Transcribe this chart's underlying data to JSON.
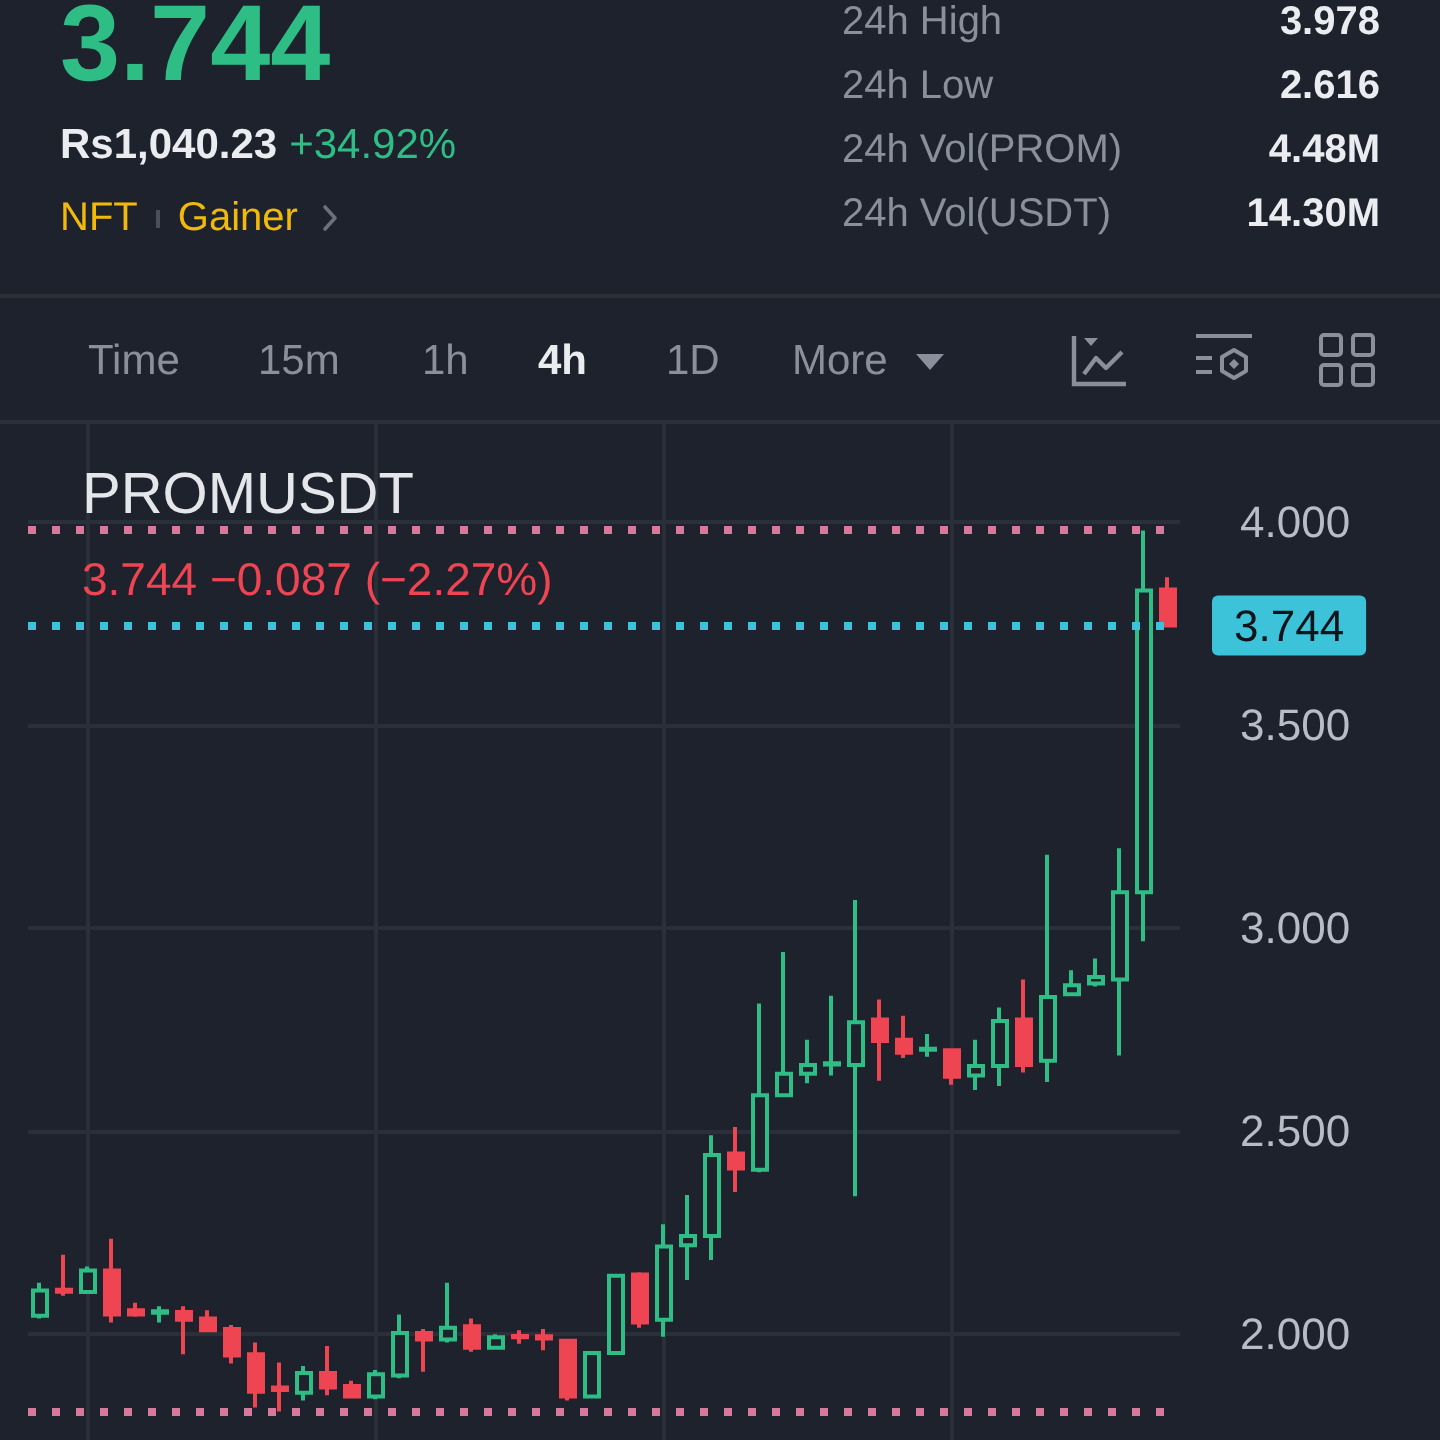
{
  "chart_data": {
    "type": "candlestick",
    "title": "PROMUSDT",
    "subtitle": "3.744 −0.087 (−2.27%)",
    "categories": [
      null,
      null,
      null,
      null,
      null,
      null,
      null,
      null,
      null,
      null,
      null,
      null,
      null,
      null,
      null,
      null,
      null,
      null,
      null,
      null,
      null,
      null,
      null,
      null,
      null,
      null,
      null,
      null,
      null,
      null,
      null,
      null,
      null,
      null,
      null,
      null,
      null,
      null,
      null,
      null,
      null,
      null,
      null,
      null,
      null,
      null,
      null,
      null
    ],
    "ohlc": [
      [
        2.046,
        2.127,
        2.039,
        2.108
      ],
      [
        2.11,
        2.196,
        2.095,
        2.105
      ],
      [
        2.104,
        2.167,
        2.101,
        2.157
      ],
      [
        2.157,
        2.235,
        2.029,
        2.049
      ],
      [
        2.059,
        2.078,
        2.043,
        2.049
      ],
      [
        2.053,
        2.069,
        2.029,
        2.057
      ],
      [
        2.055,
        2.069,
        1.951,
        2.036
      ],
      [
        2.039,
        2.059,
        2.01,
        2.01
      ],
      [
        2.013,
        2.023,
        1.928,
        1.948
      ],
      [
        1.951,
        1.98,
        1.82,
        1.859
      ],
      [
        1.869,
        1.931,
        1.81,
        1.863
      ],
      [
        1.856,
        1.922,
        1.837,
        1.905
      ],
      [
        1.905,
        1.971,
        1.85,
        1.869
      ],
      [
        1.873,
        1.886,
        1.847,
        1.847
      ],
      [
        1.847,
        1.912,
        1.84,
        1.902
      ],
      [
        1.899,
        2.049,
        1.892,
        2.003
      ],
      [
        2.003,
        2.013,
        1.908,
        1.987
      ],
      [
        1.987,
        2.127,
        1.98,
        2.016
      ],
      [
        2.02,
        2.039,
        1.957,
        1.967
      ],
      [
        1.967,
        2.0,
        1.964,
        1.993
      ],
      [
        1.996,
        2.01,
        1.977,
        1.993
      ],
      [
        1.995,
        2.013,
        1.961,
        1.99
      ],
      [
        1.984,
        1.987,
        1.837,
        1.847
      ],
      [
        1.847,
        1.958,
        1.845,
        1.954
      ],
      [
        1.954,
        2.146,
        1.952,
        2.144
      ],
      [
        2.147,
        2.153,
        2.016,
        2.029
      ],
      [
        2.036,
        2.271,
        1.994,
        2.216
      ],
      [
        2.219,
        2.343,
        2.134,
        2.242
      ],
      [
        2.242,
        2.49,
        2.183,
        2.441
      ],
      [
        2.445,
        2.51,
        2.35,
        2.408
      ],
      [
        2.405,
        2.814,
        2.399,
        2.588
      ],
      [
        2.588,
        2.941,
        2.585,
        2.641
      ],
      [
        2.641,
        2.725,
        2.618,
        2.663
      ],
      [
        2.664,
        2.833,
        2.637,
        2.667
      ],
      [
        2.663,
        3.069,
        2.34,
        2.768
      ],
      [
        2.775,
        2.824,
        2.624,
        2.722
      ],
      [
        2.725,
        2.784,
        2.68,
        2.693
      ],
      [
        2.7,
        2.739,
        2.683,
        2.703
      ],
      [
        2.699,
        2.701,
        2.614,
        2.634
      ],
      [
        2.637,
        2.725,
        2.601,
        2.66
      ],
      [
        2.66,
        2.804,
        2.611,
        2.771
      ],
      [
        2.775,
        2.873,
        2.644,
        2.663
      ],
      [
        2.673,
        3.18,
        2.621,
        2.83
      ],
      [
        2.837,
        2.896,
        2.836,
        2.859
      ],
      [
        2.863,
        2.925,
        2.856,
        2.879
      ],
      [
        2.873,
        3.196,
        2.686,
        3.088
      ],
      [
        3.088,
        3.978,
        2.967,
        3.83
      ],
      [
        3.833,
        3.863,
        3.744,
        3.744
      ]
    ],
    "colors": [
      "#2ebd85",
      "#ef4452",
      "#2ebd85",
      "#ef4452",
      "#ef4452",
      "#2ebd85",
      "#ef4452",
      "#ef4452",
      "#ef4452",
      "#ef4452",
      "#ef4452",
      "#2ebd85",
      "#ef4452",
      "#ef4452",
      "#2ebd85",
      "#2ebd85",
      "#ef4452",
      "#2ebd85",
      "#ef4452",
      "#2ebd85",
      "#ef4452",
      "#ef4452",
      "#ef4452",
      "#2ebd85",
      "#2ebd85",
      "#ef4452",
      "#2ebd85",
      "#2ebd85",
      "#2ebd85",
      "#ef4452",
      "#2ebd85",
      "#2ebd85",
      "#2ebd85",
      "#2ebd85",
      "#2ebd85",
      "#ef4452",
      "#ef4452",
      "#2ebd85",
      "#ef4452",
      "#2ebd85",
      "#2ebd85",
      "#ef4452",
      "#2ebd85",
      "#2ebd85",
      "#2ebd85",
      "#2ebd85",
      "#2ebd85",
      "#ef4452"
    ],
    "ylim": [
      1.74,
      4.24
    ],
    "yticks": [
      {
        "value": 2,
        "label": "2.000"
      },
      {
        "value": 2.5,
        "label": "2.500"
      },
      {
        "value": 3,
        "label": "3.000"
      },
      {
        "value": 3.5,
        "label": "3.500"
      },
      {
        "value": 4,
        "label": "4.000"
      }
    ],
    "grid": true,
    "tick_labels": "y",
    "ref_lines": [
      {
        "axis": "y",
        "value": 3.978,
        "color": "#d6799b",
        "line_style": "dotted"
      },
      {
        "axis": "y",
        "value": 1.81,
        "color": "#d6799b",
        "line_style": "dotted"
      },
      {
        "axis": "y",
        "value": 3.744,
        "label": "3.744",
        "color": "#3cc3d9",
        "line_style": "dotted"
      }
    ],
    "annotations": [
      "3.744",
      "Rs1,040.23",
      "+34.92%",
      "NFT",
      "Gainer",
      "24h High",
      "3.978",
      "24h Low",
      "2.616",
      "24h Vol(PROM)",
      "4.48M",
      "24h Vol(USDT)",
      "14.30M",
      "Time",
      "15m",
      "1h",
      "4h",
      "1D",
      "More"
    ]
  }
}
